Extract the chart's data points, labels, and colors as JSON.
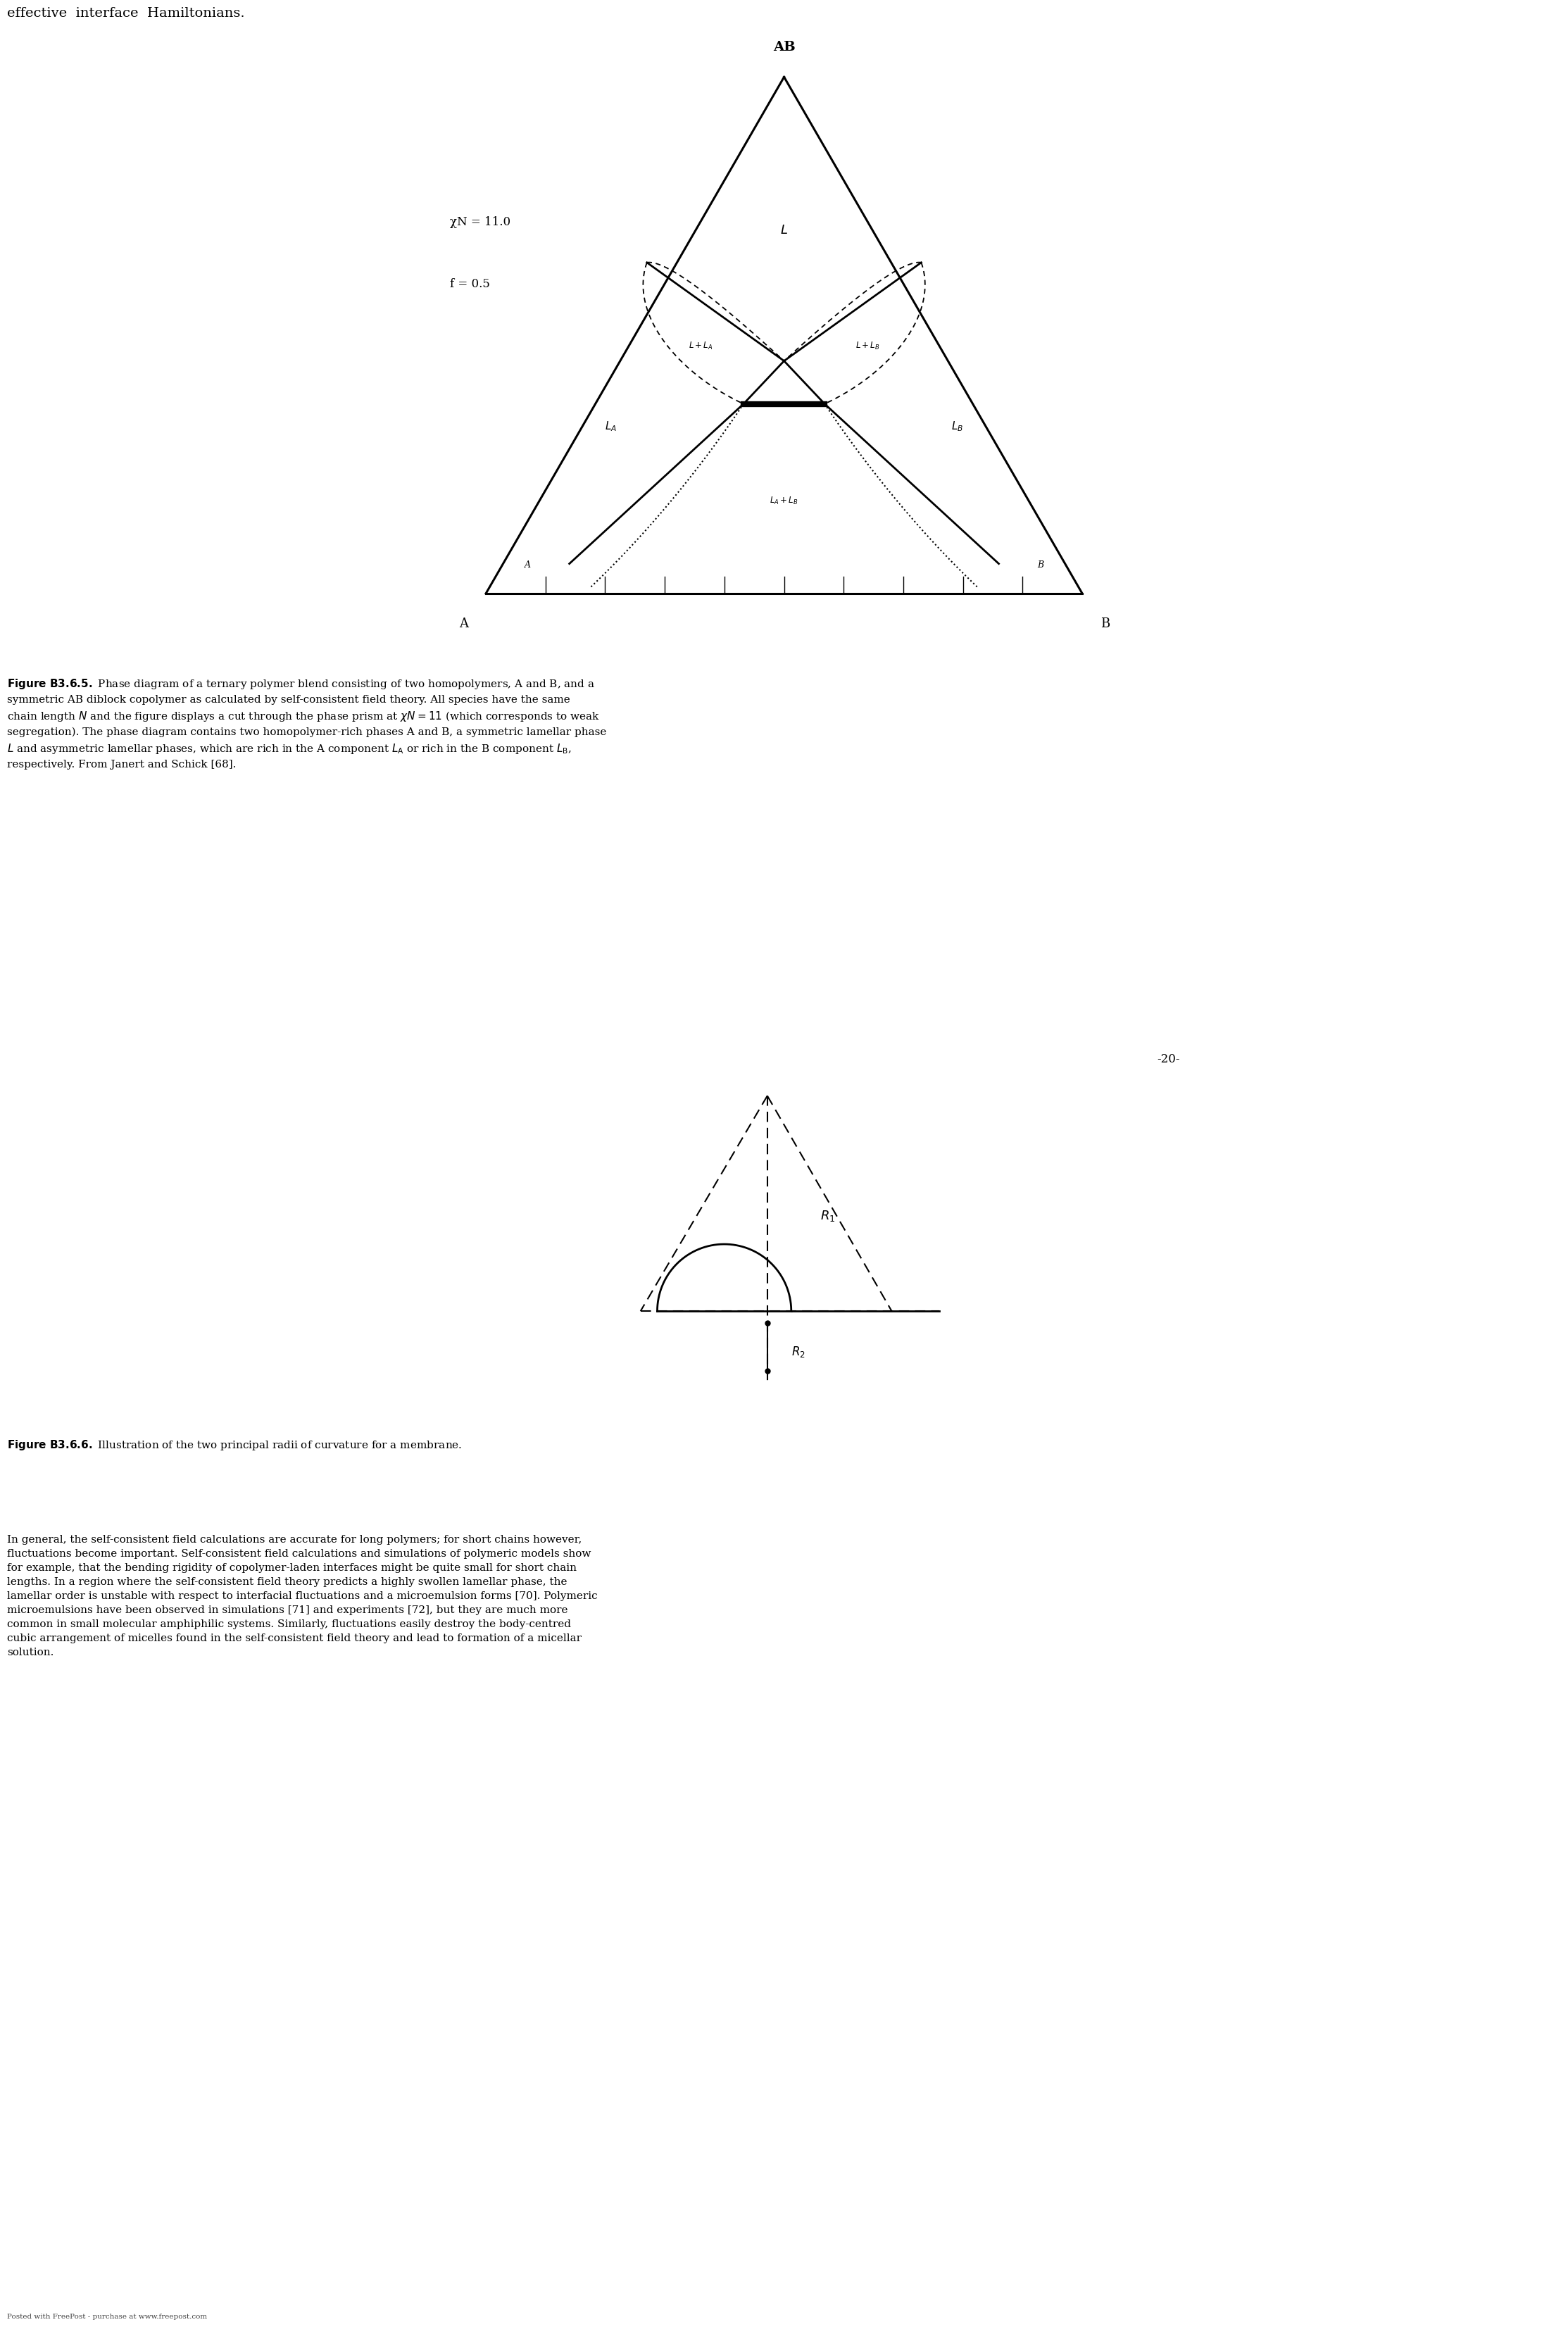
{
  "page_width": 24.8,
  "page_height": 35.08,
  "bg_color": "#ffffff",
  "top_text": "effective  interface  Hamiltonians.",
  "param_chi": "χN = 11.0",
  "param_f": "f = 0.5",
  "label_AB": "AB",
  "label_A": "A",
  "label_B": "B",
  "footer_text": "Posted with FreePost - purchase at www.freepost.com",
  "body_text": "In general, the self-consistent field calculations are accurate for long polymers; for short chains however,\nfluctuations become important. Self-consistent field calculations and simulations of polymeric models show\nfor example, that the bending rigidity of copolymer-laden interfaces might be quite small for short chain\nlengths. In a region where the self-consistent field theory predicts a highly swollen lamellar phase, the\nlamellar order is unstable with respect to interfacial fluctuations and a microemulsion forms [70]. Polymeric\nmicroemulsions have been observed in simulations [71] and experiments [72], but they are much more\ncommon in small molecular amphiphilic systems. Similarly, fluctuations easily destroy the body-centred\ncubic arrangement of micelles found in the self-consistent field theory and lead to formation of a micellar\nsolution."
}
